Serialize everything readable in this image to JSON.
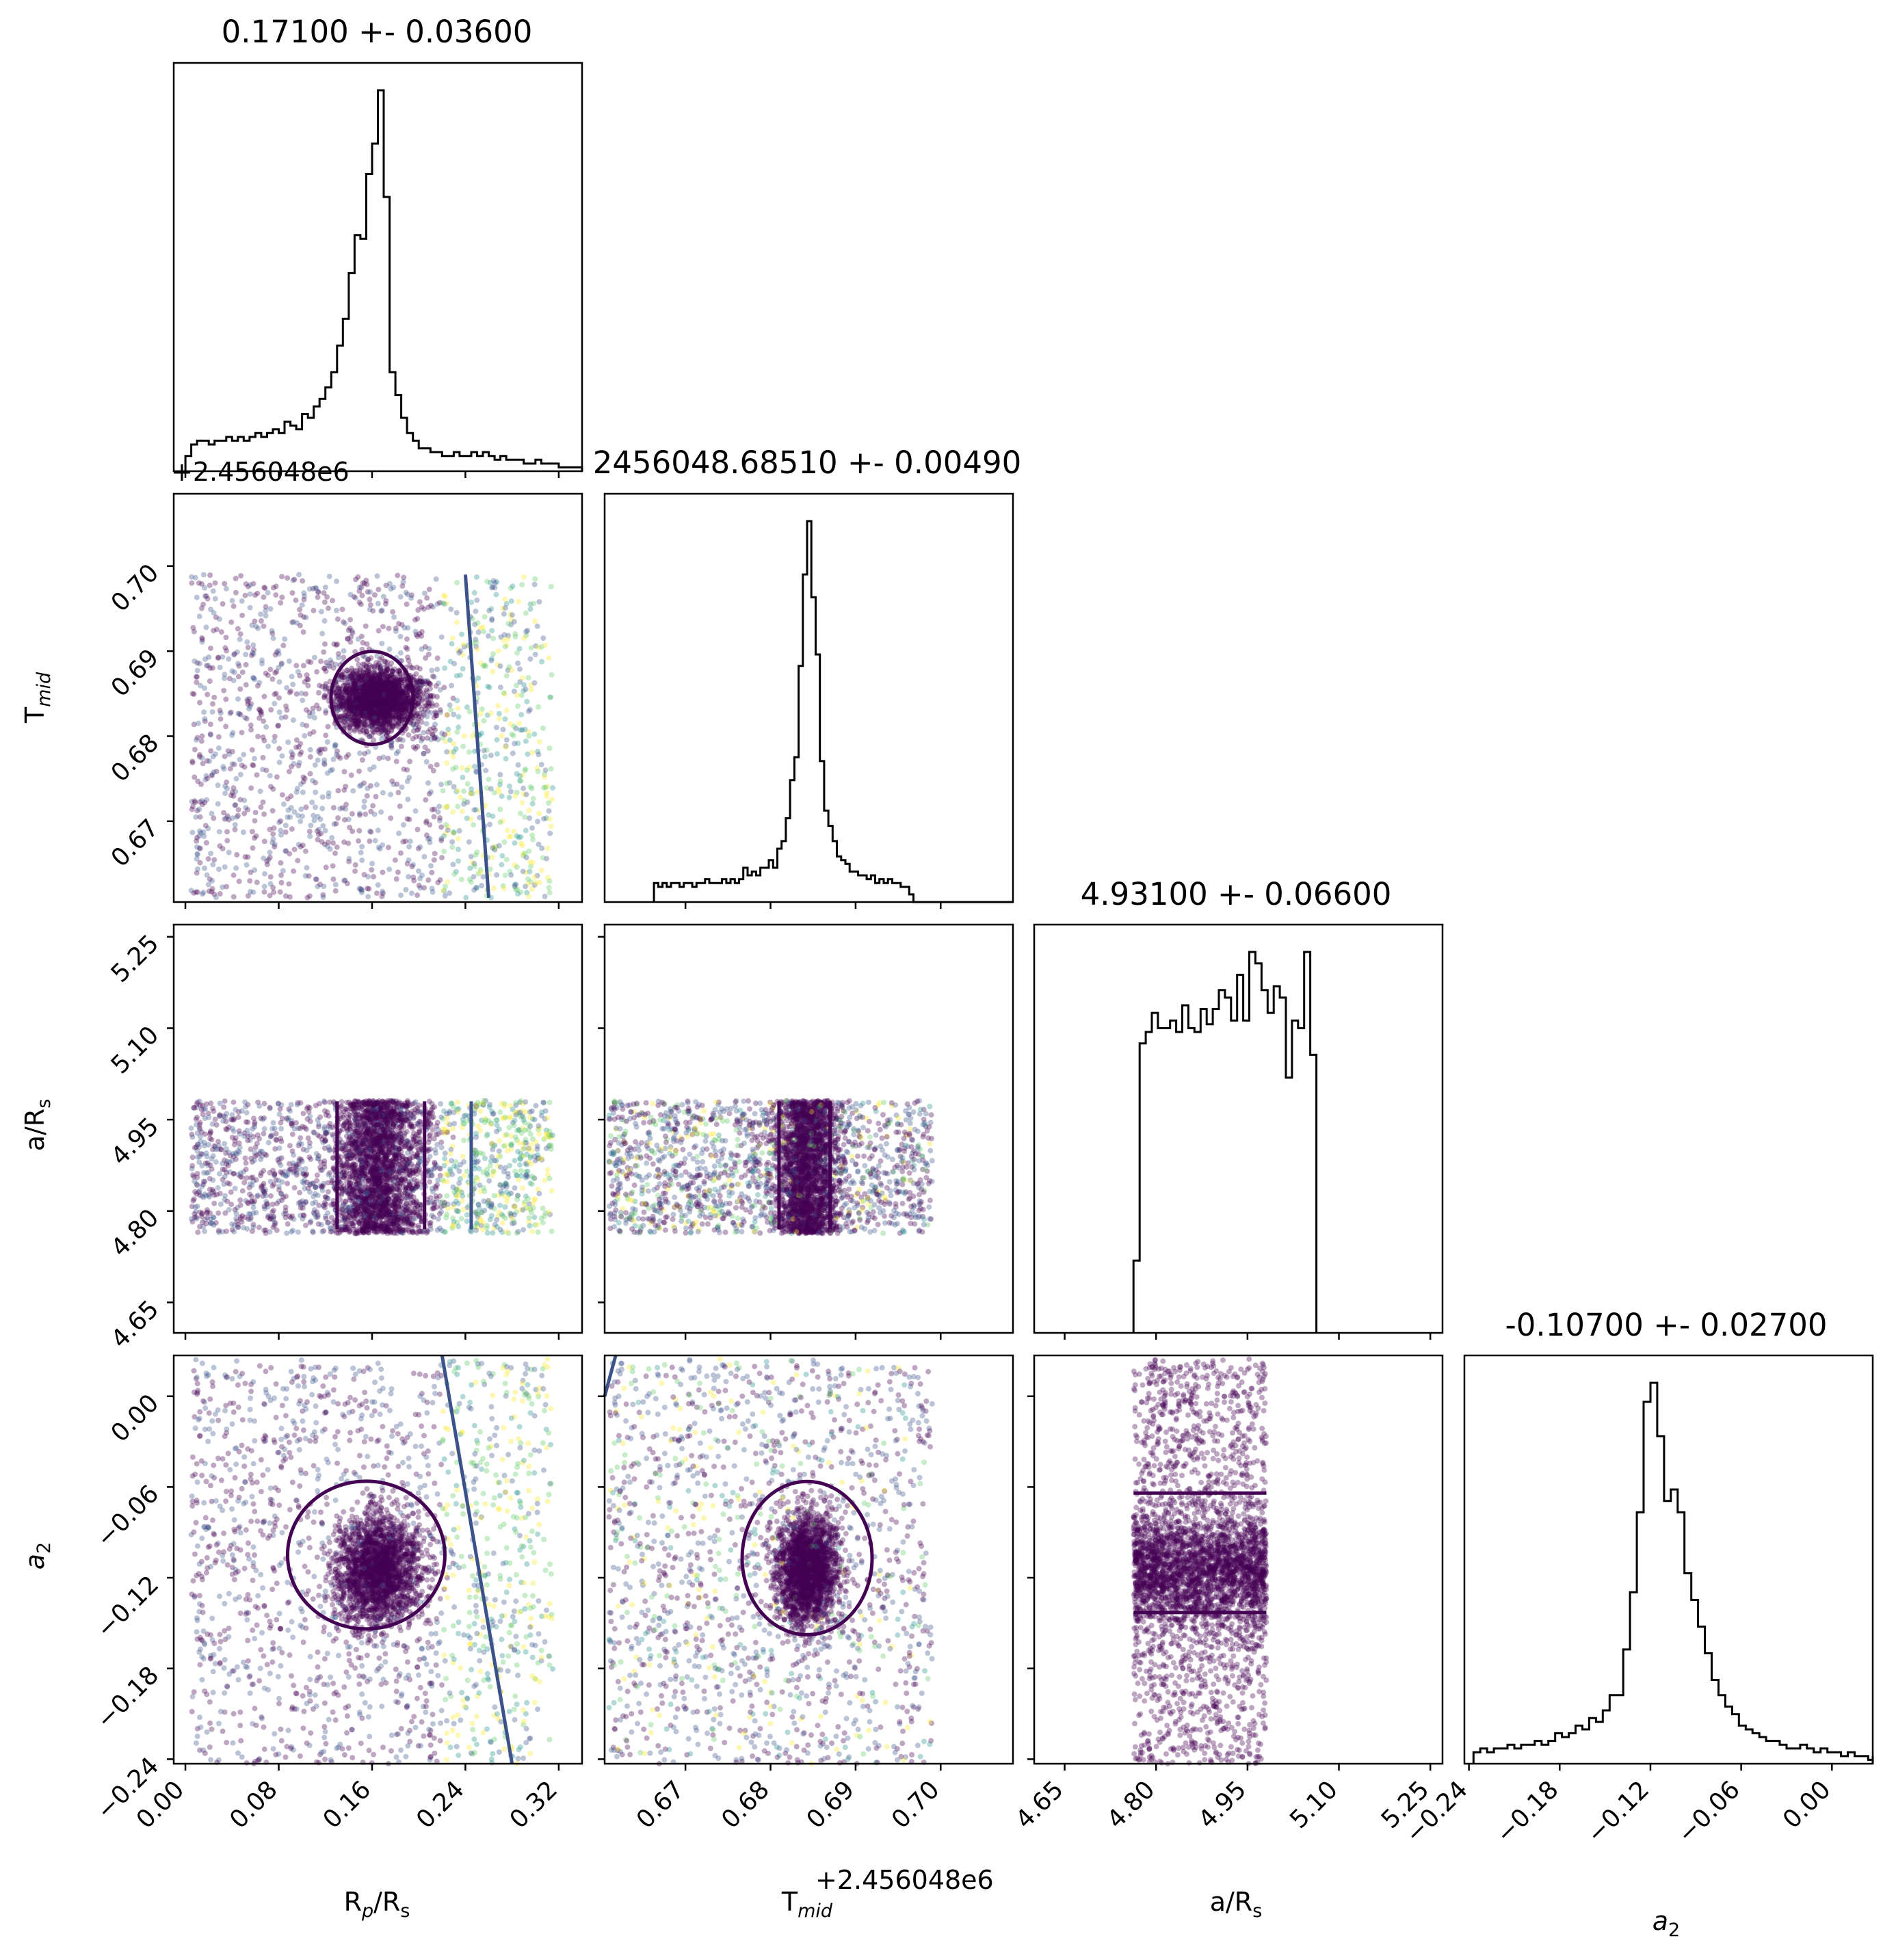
{
  "chart_data": {
    "type": "corner",
    "parameters": [
      "R_p/R_s",
      "T_mid",
      "a/R_s",
      "a_2"
    ],
    "axis_labels": [
      {
        "base": "R",
        "sub": "p",
        "mid": "/R",
        "sub2": "s"
      },
      {
        "base": "T",
        "sub": "mid",
        "mid": "",
        "sub2": ""
      },
      {
        "base": "a/R",
        "sub": "s",
        "mid": "",
        "sub2": ""
      },
      {
        "base": "a",
        "sub": "2",
        "mid": "",
        "sub2": "",
        "italic": true
      }
    ],
    "titles": [
      "0.17100 +- 0.03600",
      "2456048.68510 +- 0.00490",
      "4.93100 +- 0.06600",
      "-0.10700 +- 0.02700"
    ],
    "offset_label": "+2.456048e6",
    "ranges": [
      [
        -0.01,
        0.34
      ],
      [
        0.6605,
        0.7085
      ],
      [
        4.6,
        5.27
      ],
      [
        -0.243,
        0.027
      ]
    ],
    "ticks": [
      {
        "values": [
          0.0,
          0.08,
          0.16,
          0.24,
          0.32
        ],
        "labels": [
          "0.00",
          "0.08",
          "0.16",
          "0.24",
          "0.32"
        ]
      },
      {
        "values": [
          0.67,
          0.68,
          0.69,
          0.7
        ],
        "labels": [
          "0.67",
          "0.68",
          "0.69",
          "0.70"
        ]
      },
      {
        "values": [
          4.65,
          4.8,
          4.95,
          5.1,
          5.25
        ],
        "labels": [
          "4.65",
          "4.80",
          "4.95",
          "5.10",
          "5.25"
        ]
      },
      {
        "values": [
          -0.24,
          -0.18,
          -0.12,
          -0.06,
          0.0
        ],
        "labels": [
          "−0.24",
          "−0.18",
          "−0.12",
          "−0.06",
          "0.00"
        ]
      }
    ],
    "histograms": [
      {
        "param": "R_p/R_s",
        "peak": 0.165,
        "bin_width": 0.005,
        "heights": [
          0.04,
          0.07,
          0.08,
          0.08,
          0.07,
          0.08,
          0.08,
          0.09,
          0.08,
          0.09,
          0.08,
          0.09,
          0.1,
          0.09,
          0.1,
          0.11,
          0.1,
          0.13,
          0.12,
          0.11,
          0.15,
          0.14,
          0.17,
          0.19,
          0.22,
          0.26,
          0.33,
          0.4,
          0.52,
          0.62,
          0.61,
          0.78,
          0.86,
          1.0,
          0.72,
          0.26,
          0.2,
          0.14,
          0.1,
          0.08,
          0.06,
          0.06,
          0.05,
          0.05,
          0.04,
          0.04,
          0.05,
          0.04,
          0.04,
          0.05,
          0.04,
          0.05,
          0.04,
          0.03,
          0.04,
          0.03,
          0.03,
          0.03,
          0.02,
          0.02,
          0.03,
          0.02,
          0.02,
          0.02,
          0.01,
          0.01,
          0.01,
          0.01,
          0.01,
          0.01
        ]
      },
      {
        "param": "T_mid",
        "peak": 0.6843,
        "bin_width": 0.0005,
        "heights": [
          0.05,
          0.04,
          0.05,
          0.04,
          0.05,
          0.05,
          0.04,
          0.05,
          0.05,
          0.04,
          0.05,
          0.05,
          0.06,
          0.05,
          0.05,
          0.05,
          0.06,
          0.05,
          0.06,
          0.05,
          0.06,
          0.09,
          0.07,
          0.08,
          0.07,
          0.09,
          0.09,
          0.11,
          0.09,
          0.14,
          0.16,
          0.22,
          0.32,
          0.38,
          0.62,
          0.86,
          1.0,
          0.8,
          0.65,
          0.37,
          0.24,
          0.2,
          0.16,
          0.12,
          0.11,
          0.1,
          0.08,
          0.08,
          0.07,
          0.07,
          0.06,
          0.07,
          0.05,
          0.06,
          0.05,
          0.06,
          0.05,
          0.05,
          0.04,
          0.04,
          0.02,
          0.0,
          0.0,
          0.0,
          0.0,
          0.0,
          0.0,
          0.0,
          0.0,
          0.0,
          0.0,
          0.0,
          0.0,
          0.0,
          0.0,
          0.0,
          0.0,
          0.0,
          0.0,
          0.0,
          0.0,
          0.0,
          0.0,
          0.0,
          0.0,
          0.0,
          0.0,
          0.0,
          0.0,
          0.0,
          0.0,
          0.0,
          0.0,
          0.0,
          0.0,
          0.0
        ]
      },
      {
        "param": "a/R_s",
        "start": 4.763,
        "bin_width": 0.01,
        "heights": [
          0.19,
          0.76,
          0.79,
          0.84,
          0.8,
          0.8,
          0.82,
          0.79,
          0.86,
          0.8,
          0.79,
          0.85,
          0.81,
          0.85,
          0.9,
          0.88,
          0.82,
          0.94,
          0.82,
          1.0,
          0.97,
          0.9,
          0.84,
          0.91,
          0.88,
          0.67,
          0.82,
          0.8,
          1.0,
          0.73
        ]
      },
      {
        "param": "a_2",
        "peak": -0.12,
        "bin_width": 0.0045,
        "heights": [
          0.03,
          0.04,
          0.03,
          0.04,
          0.04,
          0.05,
          0.04,
          0.05,
          0.05,
          0.06,
          0.05,
          0.06,
          0.08,
          0.07,
          0.08,
          0.1,
          0.09,
          0.12,
          0.11,
          0.14,
          0.18,
          0.18,
          0.3,
          0.45,
          0.66,
          0.95,
          1.0,
          0.86,
          0.69,
          0.72,
          0.66,
          0.5,
          0.43,
          0.36,
          0.29,
          0.22,
          0.18,
          0.15,
          0.13,
          0.1,
          0.09,
          0.08,
          0.07,
          0.06,
          0.06,
          0.05,
          0.04,
          0.04,
          0.05,
          0.04,
          0.03,
          0.04,
          0.03,
          0.03,
          0.02,
          0.03,
          0.02,
          0.02,
          0.01,
          0.02
        ]
      }
    ],
    "colormap": [
      "#440154",
      "#3b528b",
      "#21918c",
      "#5ec962",
      "#fde725"
    ],
    "marker_color": "#440154",
    "contour_colors": [
      "#440154",
      "#3b528b"
    ],
    "grid": false,
    "legend": "none"
  }
}
